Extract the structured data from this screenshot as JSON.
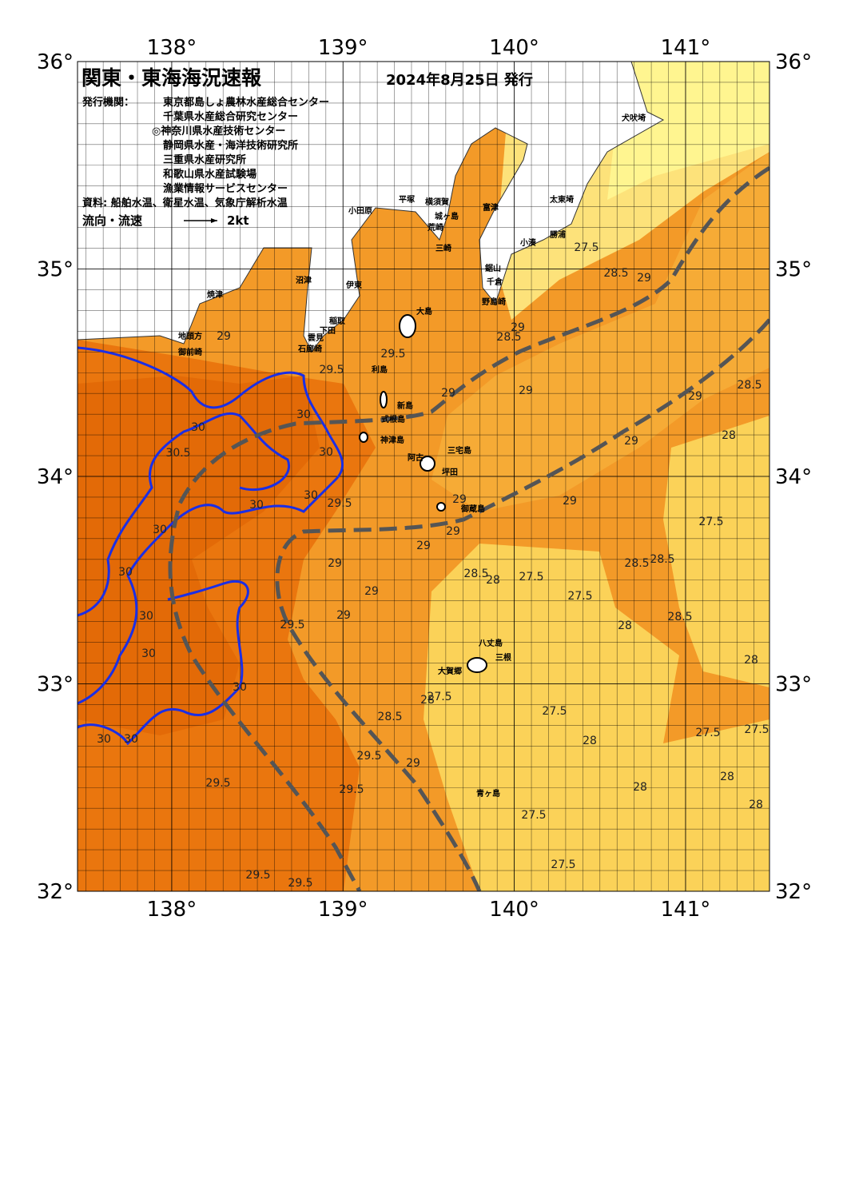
{
  "header": {
    "title": "関東・東海海況速報",
    "date": "2024年8月25日 発行",
    "issuer_label": "発行機関：",
    "issuers": [
      "東京都島しょ農林水産総合センター",
      "千葉県水産総合研究センター",
      "◎神奈川県水産技術センター",
      "静岡県水産・海洋技術研究所",
      "三重県水産研究所",
      "和歌山県水産試験場",
      "漁業情報サービスセンター"
    ],
    "sources": "資料: 船舶水温、衛星水温、気象庁解析水温",
    "legend_label": "流向・流速",
    "legend_speed": "2kt"
  },
  "map": {
    "xlim": [
      137.45,
      141.49
    ],
    "ylim": [
      32,
      36
    ],
    "xticks": [
      {
        "value": 138,
        "label": "138°"
      },
      {
        "value": 139,
        "label": "139°"
      },
      {
        "value": 140,
        "label": "140°"
      },
      {
        "value": 141,
        "label": "141°"
      }
    ],
    "yticks": [
      {
        "value": 32,
        "label": "32°"
      },
      {
        "value": 33,
        "label": "33°"
      },
      {
        "value": 34,
        "label": "34°"
      },
      {
        "value": 35,
        "label": "35°"
      },
      {
        "value": 36,
        "label": "36°"
      }
    ]
  },
  "places": [
    "犬吠埼",
    "太東埼",
    "勝浦",
    "小湊",
    "小田原",
    "平塚",
    "横須賀",
    "富津",
    "城ヶ島",
    "荒崎",
    "三崎",
    "鋸山",
    "千倉",
    "野島崎",
    "沼津",
    "伊東",
    "焼津",
    "大島",
    "稲取",
    "下田",
    "雲見",
    "石廊崎",
    "地頭方",
    "御前崎",
    "利島",
    "新島",
    "式根島",
    "神津島",
    "三宅島",
    "阿古",
    "坪田",
    "御蔵島",
    "八丈島",
    "三根",
    "大賀郷",
    "青ヶ島"
  ],
  "contour_labels": [
    29,
    29.5,
    29.5,
    29,
    28.5,
    27.5,
    28.5,
    29,
    28.5,
    29,
    29,
    29,
    30,
    30,
    30.5,
    30,
    29,
    28,
    29,
    30,
    29.5,
    30,
    29,
    29,
    27.5,
    29,
    30,
    28.5,
    28.5,
    28,
    27.5,
    28.5,
    29,
    29,
    27.5,
    30,
    29,
    28.5,
    29.5,
    30,
    28,
    30,
    28,
    28,
    27.5,
    30,
    27.5,
    28.5,
    27.5,
    27.5,
    30,
    30,
    29.5,
    29,
    28,
    28,
    29.5,
    29.5,
    28,
    28,
    27.5,
    27.5,
    29.5,
    29.5
  ]
}
